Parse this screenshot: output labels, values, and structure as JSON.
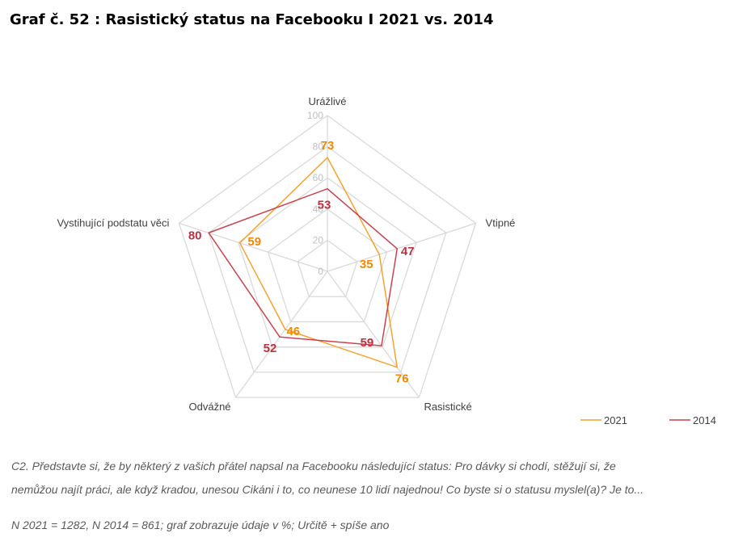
{
  "title": "Graf č. 52 : Rasistický status na Facebooku I 2021 vs. 2014",
  "chart_data": {
    "type": "radar",
    "categories": [
      "Urážlivé",
      "Vtipné",
      "Rasistické",
      "Odvážné",
      "Vystihující podstatu věci"
    ],
    "series": [
      {
        "name": "2021",
        "values": [
          73,
          35,
          76,
          46,
          59
        ],
        "color": "#f5a230",
        "label_color": "#ef8a00"
      },
      {
        "name": "2014",
        "values": [
          53,
          47,
          59,
          52,
          80
        ],
        "color": "#c8414f",
        "label_color": "#b8323f"
      }
    ],
    "rlim": [
      0,
      100
    ],
    "ticks": [
      "0",
      "20",
      "40",
      "60",
      "80",
      "100"
    ],
    "grid": true,
    "grid_color": "#d9d9d9",
    "legend_position": "bottom-right"
  },
  "notes": {
    "question_line1": "C2. Představte si, že by některý z vašich přátel napsal na Facebooku následující status: Pro dávky si chodí, stěžují si, že",
    "question_line2": "nemůžou najít práci, ale když kradou, unesou Cikáni i to, co neunese 10 lidí najednou! Co byste si o statusu myslel(a)? Je to...",
    "sample": "N 2021 = 1282, N 2014 = 861; graf zobrazuje údaje v %; Určitě + spíše ano"
  }
}
